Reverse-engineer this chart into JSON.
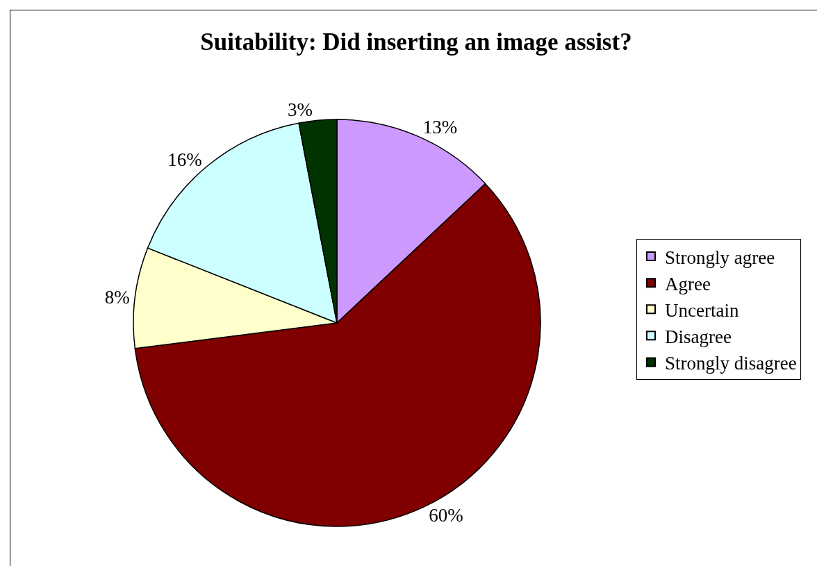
{
  "chart_data": {
    "type": "pie",
    "title": "Suitability: Did inserting an image assist?",
    "categories": [
      "Strongly agree",
      "Agree",
      "Uncertain",
      "Disagree",
      "Strongly disagree"
    ],
    "values": [
      13,
      60,
      8,
      16,
      3
    ],
    "value_labels": [
      "13%",
      "60%",
      "8%",
      "16%",
      "3%"
    ],
    "colors": [
      "#cc99ff",
      "#800000",
      "#ffffcc",
      "#ccffff",
      "#003300"
    ],
    "legend": "right"
  }
}
